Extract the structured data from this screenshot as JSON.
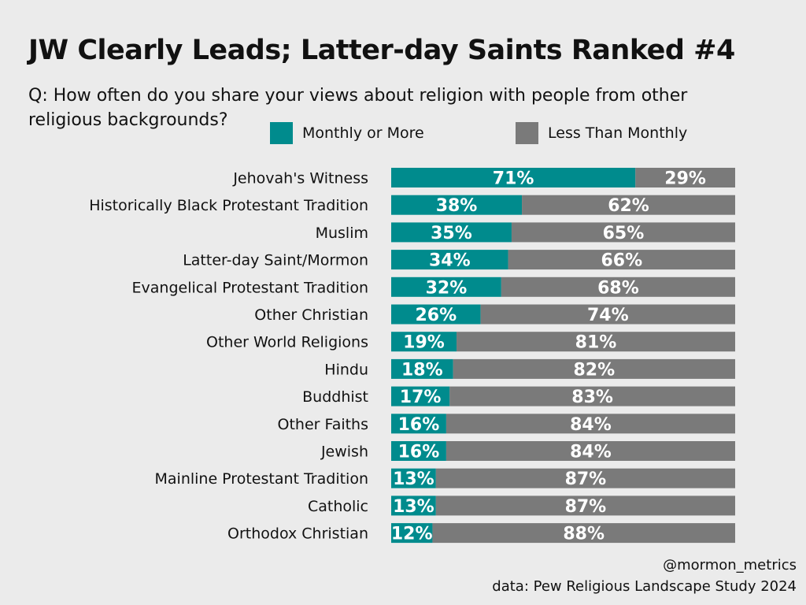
{
  "title": "JW Clearly Leads; Latter-day Saints Ranked #4",
  "subtitle": "Q: How often do you share your views about religion with people from other religious backgrounds?",
  "footer": {
    "handle": "@mormon_metrics",
    "source": "data: Pew Religious Landscape Study 2024"
  },
  "colors": {
    "monthly": "#008b8d",
    "less": "#7a7a7a"
  },
  "chart_data": {
    "type": "bar",
    "stacked": true,
    "orientation": "horizontal",
    "legend": "top",
    "categories": [
      "Jehovah's Witness",
      "Historically Black Protestant Tradition",
      "Muslim",
      "Latter-day Saint/Mormon",
      "Evangelical Protestant Tradition",
      "Other Christian",
      "Other World Religions",
      "Hindu",
      "Buddhist",
      "Other Faiths",
      "Jewish",
      "Mainline Protestant Tradition",
      "Catholic",
      "Orthodox Christian"
    ],
    "series": [
      {
        "name": "Monthly or More",
        "values": [
          71,
          38,
          35,
          34,
          32,
          26,
          19,
          18,
          17,
          16,
          16,
          13,
          13,
          12
        ]
      },
      {
        "name": "Less Than Monthly",
        "values": [
          29,
          62,
          65,
          66,
          68,
          74,
          81,
          82,
          83,
          84,
          84,
          87,
          87,
          88
        ]
      }
    ],
    "xlim": [
      0,
      100
    ]
  }
}
